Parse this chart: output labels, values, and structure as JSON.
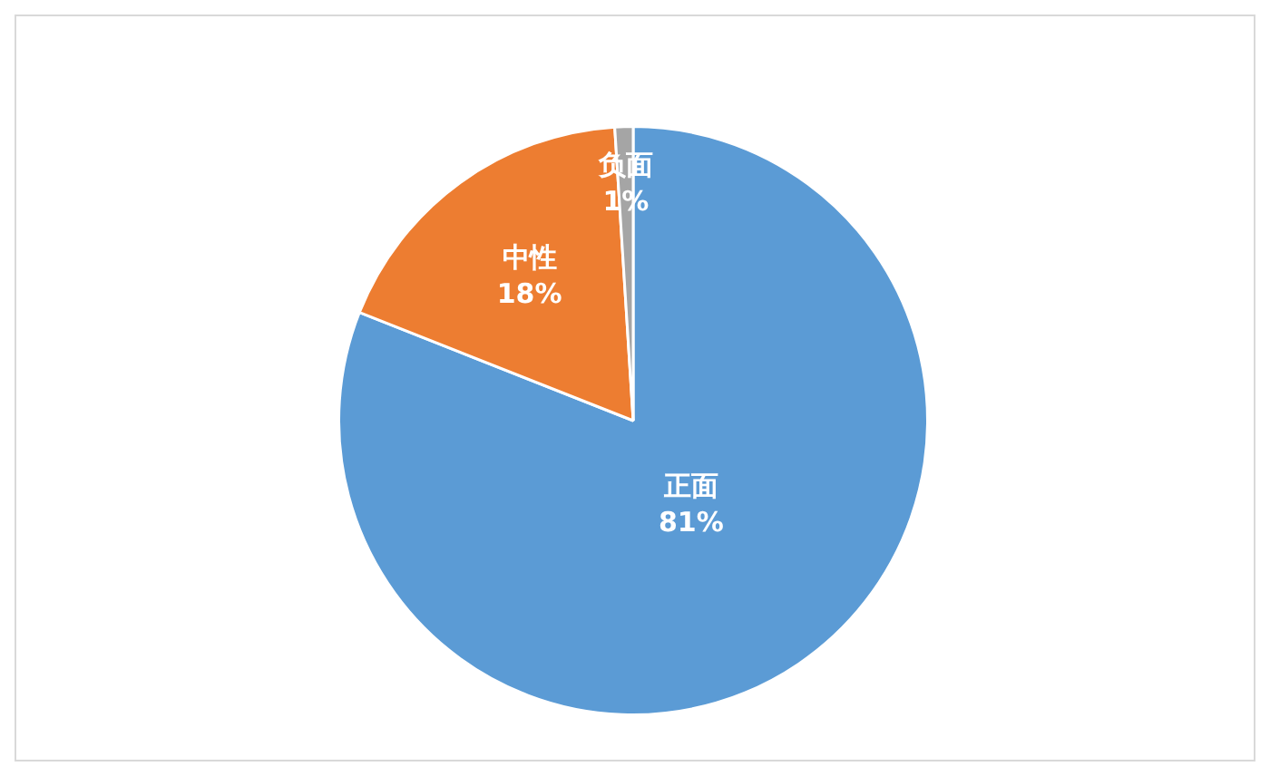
{
  "chart_data": {
    "type": "pie",
    "categories": [
      "正面",
      "中性",
      "负面"
    ],
    "values": [
      81,
      18,
      1
    ],
    "colors": [
      "#5b9bd5",
      "#ed7d31",
      "#a5a5a5"
    ],
    "value_labels": [
      "81%",
      "18%",
      "1%"
    ],
    "legend": false
  }
}
